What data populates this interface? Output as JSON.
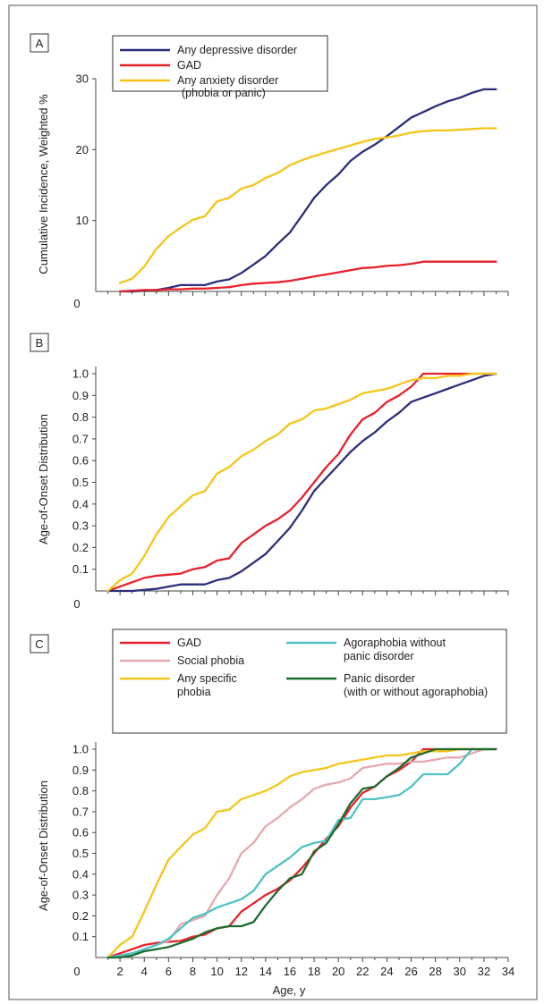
{
  "chart_data": [
    {
      "panel": "A",
      "type": "line",
      "ylabel": "Cumulative Incidence, Weighted %",
      "xlim": [
        0,
        34
      ],
      "ylim": [
        0,
        30
      ],
      "yticks": [
        10,
        20,
        30
      ],
      "xticks_shown": [
        "0"
      ],
      "grid": false,
      "legend_position": "top-right",
      "series": [
        {
          "name": "Any depressive disorder",
          "color": "#2b2e7a",
          "x": [
            2,
            3,
            4,
            5,
            6,
            7,
            8,
            9,
            10,
            11,
            12,
            13,
            14,
            15,
            16,
            17,
            18,
            19,
            20,
            21,
            22,
            23,
            24,
            25,
            26,
            27,
            28,
            29,
            30,
            31,
            32,
            33
          ],
          "y": [
            0,
            0,
            0.1,
            0.2,
            0.5,
            0.9,
            0.9,
            0.9,
            1.4,
            1.7,
            2.6,
            3.8,
            5.0,
            6.7,
            8.3,
            10.7,
            13.2,
            15.0,
            16.5,
            18.4,
            19.7,
            20.7,
            21.9,
            23.2,
            24.5,
            25.3,
            26.1,
            26.8,
            27.3,
            28.0,
            28.5,
            28.5
          ]
        },
        {
          "name": "GAD",
          "color": "#e8202a",
          "x": [
            2,
            3,
            4,
            5,
            6,
            7,
            8,
            9,
            10,
            11,
            12,
            13,
            14,
            15,
            16,
            17,
            18,
            19,
            20,
            21,
            22,
            23,
            24,
            25,
            26,
            27,
            28,
            29,
            30,
            31,
            32,
            33
          ],
          "y": [
            0,
            0.1,
            0.2,
            0.2,
            0.3,
            0.3,
            0.4,
            0.4,
            0.5,
            0.6,
            0.9,
            1.1,
            1.2,
            1.3,
            1.5,
            1.8,
            2.1,
            2.4,
            2.7,
            3.0,
            3.3,
            3.4,
            3.6,
            3.7,
            3.9,
            4.2,
            4.2,
            4.2,
            4.2,
            4.2,
            4.2,
            4.2
          ]
        },
        {
          "name": "Any anxiety disorder (phobia or panic)",
          "color": "#f5c518",
          "x": [
            2,
            3,
            4,
            5,
            6,
            7,
            8,
            9,
            10,
            11,
            12,
            13,
            14,
            15,
            16,
            17,
            18,
            19,
            20,
            21,
            22,
            23,
            24,
            25,
            26,
            27,
            28,
            29,
            30,
            31,
            32,
            33
          ],
          "y": [
            1.2,
            1.8,
            3.5,
            6.0,
            7.8,
            9.0,
            10.1,
            10.6,
            12.7,
            13.2,
            14.5,
            15.0,
            16.0,
            16.7,
            17.8,
            18.5,
            19.1,
            19.6,
            20.1,
            20.6,
            21.1,
            21.5,
            21.7,
            22.0,
            22.4,
            22.6,
            22.7,
            22.7,
            22.8,
            22.9,
            23.0,
            23.0
          ]
        }
      ]
    },
    {
      "panel": "B",
      "type": "line",
      "ylabel": "Age-of-Onset Distribution",
      "xlim": [
        0,
        34
      ],
      "ylim": [
        0,
        1.0
      ],
      "yticks": [
        0.1,
        0.2,
        0.3,
        0.4,
        0.5,
        0.6,
        0.7,
        0.8,
        0.9,
        1.0
      ],
      "xticks_shown": [
        "0"
      ],
      "grid": false,
      "series": [
        {
          "name": "GAD",
          "color": "#e8202a",
          "x": [
            1,
            2,
            3,
            4,
            5,
            6,
            7,
            8,
            9,
            10,
            11,
            12,
            13,
            14,
            15,
            16,
            17,
            18,
            19,
            20,
            21,
            22,
            23,
            24,
            25,
            26,
            27,
            28,
            29,
            30,
            31,
            32,
            33
          ],
          "y": [
            0,
            0.02,
            0.04,
            0.06,
            0.07,
            0.075,
            0.08,
            0.1,
            0.11,
            0.14,
            0.15,
            0.22,
            0.26,
            0.3,
            0.33,
            0.37,
            0.43,
            0.5,
            0.57,
            0.63,
            0.72,
            0.79,
            0.82,
            0.87,
            0.9,
            0.94,
            1.0,
            1.0,
            1.0,
            1.0,
            1.0,
            1.0,
            1.0
          ]
        },
        {
          "name": "Any depressive disorder",
          "color": "#2b2e7a",
          "x": [
            1,
            2,
            3,
            4,
            5,
            6,
            7,
            8,
            9,
            10,
            11,
            12,
            13,
            14,
            15,
            16,
            17,
            18,
            19,
            20,
            21,
            22,
            23,
            24,
            25,
            26,
            27,
            28,
            29,
            30,
            31,
            32,
            33
          ],
          "y": [
            0,
            0,
            0,
            0.005,
            0.01,
            0.02,
            0.03,
            0.03,
            0.03,
            0.05,
            0.06,
            0.09,
            0.13,
            0.17,
            0.23,
            0.29,
            0.37,
            0.46,
            0.52,
            0.58,
            0.64,
            0.69,
            0.73,
            0.78,
            0.82,
            0.87,
            0.89,
            0.91,
            0.93,
            0.95,
            0.97,
            0.99,
            1.0
          ]
        },
        {
          "name": "Any anxiety disorder",
          "color": "#f5c518",
          "x": [
            1,
            2,
            3,
            4,
            5,
            6,
            7,
            8,
            9,
            10,
            11,
            12,
            13,
            14,
            15,
            16,
            17,
            18,
            19,
            20,
            21,
            22,
            23,
            24,
            25,
            26,
            27,
            28,
            29,
            30,
            31,
            32,
            33
          ],
          "y": [
            0,
            0.05,
            0.08,
            0.16,
            0.26,
            0.34,
            0.39,
            0.44,
            0.46,
            0.54,
            0.57,
            0.62,
            0.65,
            0.69,
            0.72,
            0.77,
            0.79,
            0.83,
            0.84,
            0.86,
            0.88,
            0.91,
            0.92,
            0.93,
            0.95,
            0.97,
            0.98,
            0.98,
            0.99,
            0.99,
            1.0,
            1.0,
            1.0
          ]
        }
      ]
    },
    {
      "panel": "C",
      "type": "line",
      "xlabel": "Age, y",
      "ylabel": "Age-of-Onset Distribution",
      "xlim": [
        0,
        34
      ],
      "ylim": [
        0,
        1.0
      ],
      "xticks": [
        0,
        2,
        4,
        6,
        8,
        10,
        12,
        14,
        16,
        18,
        20,
        22,
        24,
        26,
        28,
        30,
        32,
        34
      ],
      "yticks": [
        0.1,
        0.2,
        0.3,
        0.4,
        0.5,
        0.6,
        0.7,
        0.8,
        0.9,
        1.0
      ],
      "grid": false,
      "legend_position": "top",
      "series": [
        {
          "name": "GAD",
          "color": "#e8202a",
          "x": [
            1,
            2,
            3,
            4,
            5,
            6,
            7,
            8,
            9,
            10,
            11,
            12,
            13,
            14,
            15,
            16,
            17,
            18,
            19,
            20,
            21,
            22,
            23,
            24,
            25,
            26,
            27,
            28,
            29,
            30,
            31,
            32,
            33
          ],
          "y": [
            0,
            0.02,
            0.04,
            0.06,
            0.07,
            0.075,
            0.08,
            0.1,
            0.11,
            0.14,
            0.15,
            0.22,
            0.26,
            0.3,
            0.33,
            0.37,
            0.43,
            0.5,
            0.57,
            0.63,
            0.72,
            0.79,
            0.82,
            0.87,
            0.9,
            0.94,
            1.0,
            1.0,
            1.0,
            1.0,
            1.0,
            1.0,
            1.0
          ]
        },
        {
          "name": "Social phobia",
          "color": "#e6a7ae",
          "x": [
            1,
            2,
            3,
            4,
            5,
            6,
            7,
            8,
            9,
            10,
            11,
            12,
            13,
            14,
            15,
            16,
            17,
            18,
            19,
            20,
            21,
            22,
            23,
            24,
            25,
            26,
            27,
            28,
            29,
            30,
            31,
            32,
            33
          ],
          "y": [
            0,
            0.01,
            0.02,
            0.04,
            0.06,
            0.08,
            0.16,
            0.18,
            0.2,
            0.3,
            0.38,
            0.5,
            0.55,
            0.63,
            0.67,
            0.72,
            0.76,
            0.81,
            0.83,
            0.84,
            0.86,
            0.91,
            0.92,
            0.93,
            0.93,
            0.94,
            0.94,
            0.95,
            0.96,
            0.96,
            0.98,
            1.0,
            1.0
          ]
        },
        {
          "name": "Any specific phobia",
          "color": "#f5c518",
          "x": [
            1,
            2,
            3,
            4,
            5,
            6,
            7,
            8,
            9,
            10,
            11,
            12,
            13,
            14,
            15,
            16,
            17,
            18,
            19,
            20,
            21,
            22,
            23,
            24,
            25,
            26,
            27,
            28,
            29,
            30,
            31,
            32,
            33
          ],
          "y": [
            0,
            0.06,
            0.1,
            0.22,
            0.35,
            0.47,
            0.53,
            0.59,
            0.62,
            0.7,
            0.71,
            0.76,
            0.78,
            0.8,
            0.83,
            0.87,
            0.89,
            0.9,
            0.91,
            0.93,
            0.94,
            0.95,
            0.96,
            0.97,
            0.97,
            0.98,
            0.99,
            0.99,
            0.99,
            1.0,
            1.0,
            1.0,
            1.0
          ]
        },
        {
          "name": "Agoraphobia without panic disorder",
          "color": "#4fc2c4",
          "x": [
            1,
            2,
            3,
            4,
            5,
            6,
            7,
            8,
            9,
            10,
            11,
            12,
            13,
            14,
            15,
            16,
            17,
            18,
            19,
            20,
            21,
            22,
            23,
            24,
            25,
            26,
            27,
            28,
            29,
            30,
            31,
            32,
            33
          ],
          "y": [
            0,
            0.01,
            0.02,
            0.04,
            0.06,
            0.09,
            0.14,
            0.19,
            0.21,
            0.24,
            0.26,
            0.28,
            0.32,
            0.4,
            0.44,
            0.48,
            0.53,
            0.55,
            0.56,
            0.66,
            0.67,
            0.76,
            0.76,
            0.77,
            0.78,
            0.82,
            0.88,
            0.88,
            0.88,
            0.93,
            1.0,
            1.0,
            1.0
          ]
        },
        {
          "name": "Panic disorder (with or without agoraphobia)",
          "color": "#1e6b2e",
          "x": [
            1,
            2,
            3,
            4,
            5,
            6,
            7,
            8,
            9,
            10,
            11,
            12,
            13,
            14,
            15,
            16,
            17,
            18,
            19,
            20,
            21,
            22,
            23,
            24,
            25,
            26,
            27,
            28,
            29,
            30,
            31,
            32,
            33
          ],
          "y": [
            0,
            0,
            0.01,
            0.03,
            0.04,
            0.05,
            0.07,
            0.09,
            0.12,
            0.14,
            0.15,
            0.15,
            0.17,
            0.25,
            0.32,
            0.38,
            0.4,
            0.51,
            0.55,
            0.64,
            0.74,
            0.81,
            0.82,
            0.87,
            0.91,
            0.96,
            0.98,
            1.0,
            1.0,
            1.0,
            1.0,
            1.0,
            1.0
          ]
        }
      ]
    }
  ],
  "legend_a": {
    "l1": "Any depressive disorder",
    "l2": "GAD",
    "l3a": "Any anxiety disorder",
    "l3b": "(phobia or panic)"
  },
  "legend_c": {
    "gad": "GAD",
    "social": "Social phobia",
    "spec1": "Any specific",
    "spec2": "phobia",
    "agora1": "Agoraphobia without",
    "agora2": "panic disorder",
    "panic1": "Panic disorder",
    "panic2": "(with or without agoraphobia)"
  },
  "panel_labels": {
    "a": "A",
    "b": "B",
    "c": "C"
  },
  "ylabels": {
    "a": "Cumulative Incidence, Weighted %",
    "b": "Age-of-Onset Distribution",
    "c": "Age-of-Onset Distribution"
  },
  "xlabel_c": "Age, y",
  "zero_label": "0",
  "ticks_a": [
    "10",
    "20",
    "30"
  ],
  "ticks_frac": [
    "0.1",
    "0.2",
    "0.3",
    "0.4",
    "0.5",
    "0.6",
    "0.7",
    "0.8",
    "0.9",
    "1.0"
  ],
  "ticks_x": [
    "0",
    "2",
    "4",
    "6",
    "8",
    "10",
    "12",
    "14",
    "16",
    "18",
    "20",
    "22",
    "24",
    "26",
    "28",
    "30",
    "32",
    "34"
  ]
}
